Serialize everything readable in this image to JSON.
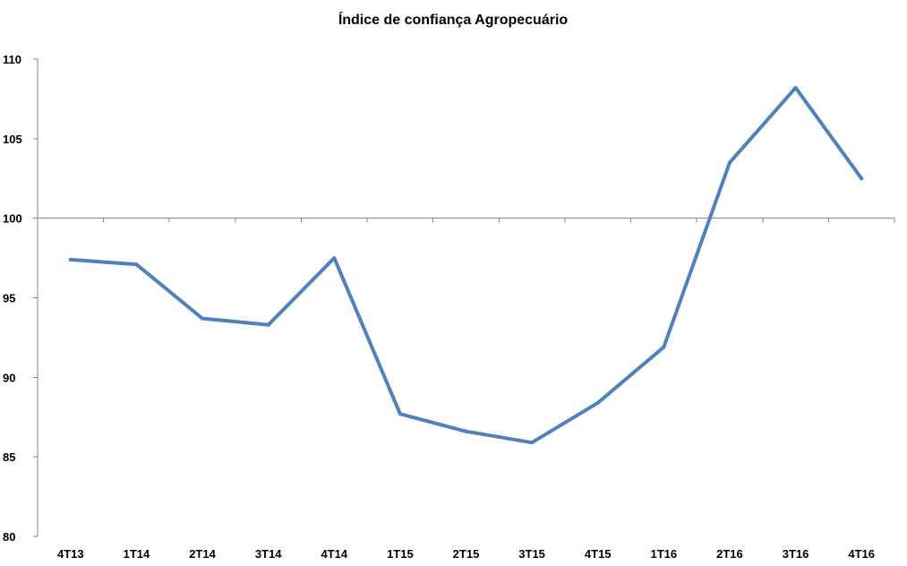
{
  "chart_data": {
    "type": "line",
    "title": "Índice de confiança Agropecuário",
    "xlabel": "",
    "ylabel": "",
    "categories": [
      "4T13",
      "1T14",
      "2T14",
      "3T14",
      "4T14",
      "1T15",
      "2T15",
      "3T15",
      "4T15",
      "1T16",
      "2T16",
      "3T16",
      "4T16"
    ],
    "series": [
      {
        "values": [
          97.4,
          97.1,
          93.7,
          93.3,
          97.5,
          87.7,
          86.6,
          85.9,
          88.4,
          91.9,
          103.5,
          108.2,
          102.5
        ]
      }
    ],
    "ylim": [
      80,
      110
    ],
    "yticks": [
      80,
      85,
      90,
      95,
      100,
      105,
      110
    ],
    "category_axis_crosses_at": 100,
    "grid": false,
    "legend": "none",
    "colors": {
      "series": "#4F81BD",
      "axis": "#868686"
    }
  }
}
